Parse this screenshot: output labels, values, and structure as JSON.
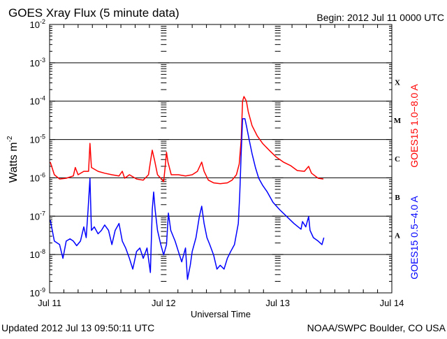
{
  "chart_data": {
    "type": "line",
    "title": "GOES Xray Flux (5 minute data)",
    "begin_label": "Begin:  2012 Jul 11 0000 UTC",
    "xlabel": "Universal Time",
    "ylabel": "Watts m",
    "ylabel_sup": "-2",
    "x_unit": "hours since 2012 Jul 11 0000 UTC",
    "xlim": [
      0,
      72
    ],
    "x_ticks": [
      {
        "value": 0,
        "label": "Jul 11"
      },
      {
        "value": 24,
        "label": "Jul 12"
      },
      {
        "value": 48,
        "label": "Jul 13"
      },
      {
        "value": 72,
        "label": "Jul 14"
      }
    ],
    "y_scale": "log",
    "ylim_log10": [
      -9,
      -2
    ],
    "y_ticks": [
      {
        "exp": -2,
        "base": "10",
        "sup": "-2"
      },
      {
        "exp": -3,
        "base": "10",
        "sup": "-3"
      },
      {
        "exp": -4,
        "base": "10",
        "sup": "-4"
      },
      {
        "exp": -5,
        "base": "10",
        "sup": "-5"
      },
      {
        "exp": -6,
        "base": "10",
        "sup": "-6"
      },
      {
        "exp": -7,
        "base": "10",
        "sup": "-7"
      },
      {
        "exp": -8,
        "base": "10",
        "sup": "-8"
      },
      {
        "exp": -9,
        "base": "10",
        "sup": "-9"
      }
    ],
    "flare_classes": [
      {
        "label": "X",
        "exp": -3.5
      },
      {
        "label": "M",
        "exp": -4.5
      },
      {
        "label": "C",
        "exp": -5.5
      },
      {
        "label": "B",
        "exp": -6.5
      },
      {
        "label": "A",
        "exp": -7.5
      }
    ],
    "grid": "horizontal lines at decades",
    "series": [
      {
        "name": "GOES15 1.0−8.0 A",
        "color": "#ff0000",
        "points_hours_log10flux": [
          [
            0.15,
            -5.59
          ],
          [
            1.0,
            -5.92
          ],
          [
            2.1,
            -6.03
          ],
          [
            3.5,
            -6.01
          ],
          [
            5.0,
            -5.95
          ],
          [
            5.4,
            -5.73
          ],
          [
            6.0,
            -5.92
          ],
          [
            7.2,
            -5.83
          ],
          [
            8.2,
            -5.83
          ],
          [
            8.5,
            -5.1
          ],
          [
            8.8,
            -5.73
          ],
          [
            10.2,
            -5.83
          ],
          [
            11.6,
            -5.88
          ],
          [
            13.1,
            -5.92
          ],
          [
            14.6,
            -5.95
          ],
          [
            15.3,
            -5.83
          ],
          [
            15.8,
            -6.01
          ],
          [
            16.8,
            -5.92
          ],
          [
            18.3,
            -6.03
          ],
          [
            19.7,
            -6.06
          ],
          [
            20.8,
            -5.92
          ],
          [
            21.2,
            -5.59
          ],
          [
            21.6,
            -5.28
          ],
          [
            22.1,
            -5.55
          ],
          [
            22.7,
            -5.92
          ],
          [
            23.4,
            -6.01
          ],
          [
            24.0,
            -6.1
          ],
          [
            24.3,
            -5.73
          ],
          [
            24.6,
            -5.33
          ],
          [
            24.9,
            -5.59
          ],
          [
            25.6,
            -5.92
          ],
          [
            27.1,
            -5.92
          ],
          [
            28.6,
            -5.95
          ],
          [
            30.0,
            -5.92
          ],
          [
            31.1,
            -5.83
          ],
          [
            32.0,
            -5.59
          ],
          [
            32.5,
            -5.83
          ],
          [
            33.4,
            -6.06
          ],
          [
            34.5,
            -6.13
          ],
          [
            35.9,
            -6.15
          ],
          [
            37.4,
            -6.13
          ],
          [
            38.4,
            -6.06
          ],
          [
            39.3,
            -5.92
          ],
          [
            39.9,
            -5.64
          ],
          [
            40.3,
            -5.01
          ],
          [
            40.6,
            -4.0
          ],
          [
            40.9,
            -3.88
          ],
          [
            41.4,
            -4.0
          ],
          [
            41.8,
            -4.28
          ],
          [
            42.6,
            -4.64
          ],
          [
            43.7,
            -4.91
          ],
          [
            44.8,
            -5.1
          ],
          [
            46.2,
            -5.28
          ],
          [
            47.7,
            -5.46
          ],
          [
            49.2,
            -5.59
          ],
          [
            50.7,
            -5.68
          ],
          [
            52.1,
            -5.81
          ],
          [
            53.6,
            -5.83
          ],
          [
            54.5,
            -5.7
          ],
          [
            55.1,
            -5.88
          ],
          [
            56.5,
            -6.01
          ],
          [
            57.6,
            -6.03
          ]
        ]
      },
      {
        "name": "GOES15 0.5−4.0 A",
        "color": "#0000ff",
        "points_hours_log10flux": [
          [
            0.15,
            -7.1
          ],
          [
            1.0,
            -7.65
          ],
          [
            2.1,
            -7.74
          ],
          [
            2.8,
            -8.1
          ],
          [
            3.5,
            -7.65
          ],
          [
            4.3,
            -7.59
          ],
          [
            5.0,
            -7.65
          ],
          [
            5.7,
            -7.77
          ],
          [
            6.5,
            -7.65
          ],
          [
            7.2,
            -7.28
          ],
          [
            7.7,
            -7.56
          ],
          [
            8.1,
            -6.83
          ],
          [
            8.5,
            -6.01
          ],
          [
            8.8,
            -7.37
          ],
          [
            9.4,
            -7.28
          ],
          [
            10.2,
            -7.46
          ],
          [
            10.9,
            -7.37
          ],
          [
            11.6,
            -7.23
          ],
          [
            12.4,
            -7.37
          ],
          [
            13.1,
            -7.74
          ],
          [
            13.8,
            -7.37
          ],
          [
            14.6,
            -7.19
          ],
          [
            15.3,
            -7.65
          ],
          [
            16.0,
            -7.83
          ],
          [
            16.8,
            -8.1
          ],
          [
            17.5,
            -8.38
          ],
          [
            18.3,
            -7.92
          ],
          [
            19.0,
            -7.83
          ],
          [
            19.7,
            -8.1
          ],
          [
            20.5,
            -7.83
          ],
          [
            21.2,
            -8.47
          ],
          [
            21.6,
            -6.83
          ],
          [
            21.9,
            -6.37
          ],
          [
            22.2,
            -6.83
          ],
          [
            22.7,
            -7.37
          ],
          [
            23.4,
            -7.74
          ],
          [
            24.0,
            -8.01
          ],
          [
            24.6,
            -7.74
          ],
          [
            25.0,
            -6.92
          ],
          [
            25.5,
            -7.37
          ],
          [
            26.4,
            -7.65
          ],
          [
            27.1,
            -7.92
          ],
          [
            27.8,
            -8.19
          ],
          [
            28.6,
            -7.83
          ],
          [
            29.0,
            -8.65
          ],
          [
            29.6,
            -8.28
          ],
          [
            30.0,
            -7.92
          ],
          [
            30.8,
            -7.56
          ],
          [
            31.5,
            -7.01
          ],
          [
            32.0,
            -6.74
          ],
          [
            32.5,
            -7.19
          ],
          [
            33.1,
            -7.56
          ],
          [
            33.7,
            -7.74
          ],
          [
            34.5,
            -8.01
          ],
          [
            35.2,
            -8.38
          ],
          [
            35.9,
            -8.28
          ],
          [
            36.7,
            -8.38
          ],
          [
            37.4,
            -8.1
          ],
          [
            38.1,
            -7.92
          ],
          [
            38.9,
            -7.74
          ],
          [
            39.3,
            -7.46
          ],
          [
            39.7,
            -7.19
          ],
          [
            40.0,
            -6.46
          ],
          [
            40.3,
            -5.37
          ],
          [
            40.6,
            -4.46
          ],
          [
            41.1,
            -4.46
          ],
          [
            41.4,
            -4.64
          ],
          [
            42.0,
            -5.01
          ],
          [
            42.6,
            -5.37
          ],
          [
            43.3,
            -5.73
          ],
          [
            44.0,
            -6.01
          ],
          [
            44.8,
            -6.19
          ],
          [
            45.8,
            -6.37
          ],
          [
            47.0,
            -6.64
          ],
          [
            48.4,
            -6.83
          ],
          [
            49.9,
            -7.01
          ],
          [
            51.4,
            -7.19
          ],
          [
            52.9,
            -7.34
          ],
          [
            53.2,
            -7.14
          ],
          [
            53.9,
            -7.28
          ],
          [
            54.5,
            -7.01
          ],
          [
            54.8,
            -7.37
          ],
          [
            55.5,
            -7.56
          ],
          [
            56.5,
            -7.65
          ],
          [
            57.3,
            -7.74
          ],
          [
            57.7,
            -7.56
          ]
        ]
      }
    ]
  },
  "footer": {
    "updated": "Updated 2012 Jul 13 09:50:11 UTC",
    "source": "NOAA/SWPC Boulder, CO USA"
  }
}
